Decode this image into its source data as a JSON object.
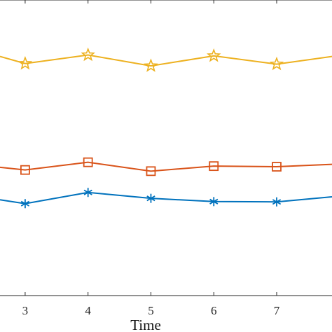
{
  "chart_data": {
    "type": "line",
    "xlabel": "Time",
    "ylabel": "",
    "x_ticks": [
      3,
      4,
      5,
      6,
      7
    ],
    "xlim": [
      2.6,
      7.88
    ],
    "ylim": [
      0,
      100
    ],
    "grid": false,
    "series": [
      {
        "color": "#EDB120",
        "marker": "star",
        "x": [
          2.6,
          3,
          4,
          5,
          6,
          7,
          7.88
        ],
        "y": [
          80.9,
          78.5,
          81.4,
          77.7,
          81.1,
          78.3,
          80.9
        ]
      },
      {
        "color": "#D95319",
        "marker": "square",
        "x": [
          2.6,
          3,
          4,
          5,
          6,
          7,
          7.88
        ],
        "y": [
          43.4,
          42.5,
          45.1,
          42.1,
          43.8,
          43.6,
          44.4
        ]
      },
      {
        "color": "#0072BD",
        "marker": "asterisk",
        "x": [
          2.6,
          3,
          4,
          5,
          6,
          7,
          7.88
        ],
        "y": [
          32.4,
          31.1,
          34.9,
          32.9,
          31.8,
          31.7,
          33.4
        ]
      }
    ]
  }
}
